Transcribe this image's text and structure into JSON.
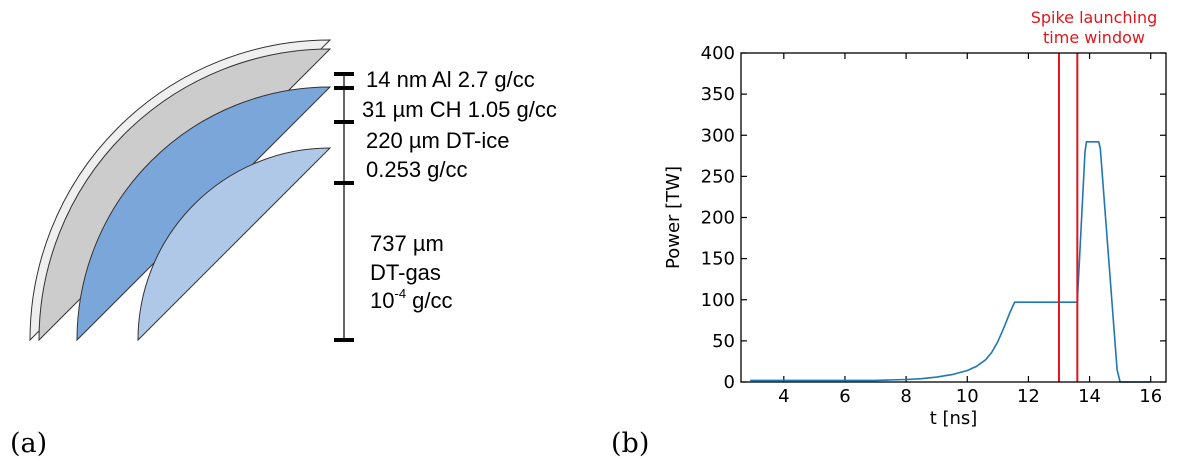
{
  "panel_a": {
    "panel_label": "(a)",
    "colors": {
      "al_layer": "#efefef",
      "ch_layer": "#cccccc",
      "ice_layer": "#7ba6d9",
      "gas_layer": "#afc8e8",
      "outline": "#333333"
    },
    "labels": {
      "al": "14 nm Al 2.7 g/cc",
      "ch": "31 µm CH 1.05 g/cc",
      "ice_1": "220 µm DT-ice",
      "ice_2": "0.253 g/cc",
      "gas_1": "737 µm",
      "gas_2": "DT-gas",
      "gas_3_base": "10",
      "gas_3_exp": "-4",
      "gas_3_unit": " g/cc"
    }
  },
  "panel_b": {
    "panel_label": "(b)",
    "annotation_line1": "Spike launching",
    "annotation_line2": "time window",
    "colors": {
      "series": "#1f77b4",
      "window": "#e0161c"
    },
    "chart_data": {
      "type": "line",
      "xlabel": "t [ns]",
      "ylabel": "Power [TW]",
      "xlim": [
        2.6,
        16.5
      ],
      "ylim": [
        0,
        400
      ],
      "xticks": [
        4,
        6,
        8,
        10,
        12,
        14,
        16
      ],
      "yticks": [
        0,
        50,
        100,
        150,
        200,
        250,
        300,
        350,
        400
      ],
      "grid": false,
      "window_lines_x": [
        13.0,
        13.6
      ],
      "series": [
        {
          "x": [
            2.9,
            4.0,
            5.0,
            6.0,
            7.0,
            8.0,
            8.5,
            9.0,
            9.5,
            10.0,
            10.3,
            10.6,
            10.8,
            11.0,
            11.2,
            11.4,
            11.5,
            11.55,
            13.6,
            13.85,
            13.9,
            14.3,
            14.35,
            14.9,
            15.0,
            16.0
          ],
          "y": [
            2,
            2,
            2,
            2,
            2,
            3,
            4,
            6,
            9,
            14,
            19,
            27,
            36,
            49,
            66,
            85,
            93,
            97,
            97,
            280,
            292,
            292,
            284,
            15,
            0,
            0
          ]
        }
      ]
    }
  }
}
